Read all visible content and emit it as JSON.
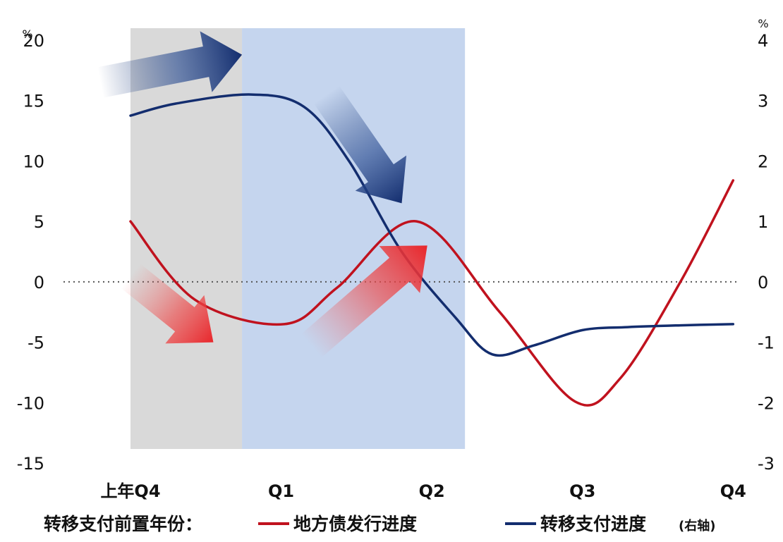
{
  "chart_data": {
    "type": "line",
    "left_axis": {
      "unit": "%",
      "ylim": [
        -15,
        20
      ],
      "ticks": [
        20,
        15,
        10,
        5,
        0,
        -5,
        -10,
        -15
      ],
      "tick_labels": [
        "20",
        "15",
        "10",
        "5",
        "0",
        "-5",
        "-10",
        "-15"
      ]
    },
    "right_axis": {
      "unit": "%",
      "ylim": [
        -3,
        4
      ],
      "ticks": [
        4,
        3,
        2,
        1,
        0,
        -1,
        -2,
        -3
      ],
      "tick_labels": [
        "4",
        "3",
        "2",
        "1",
        "0",
        "-1",
        "-2",
        "-3"
      ]
    },
    "categories": [
      "上年Q4",
      "Q1",
      "Q2",
      "Q3",
      "Q4"
    ],
    "x_range": [
      0,
      4.05
    ],
    "zero_line": "dotted",
    "grid": false,
    "shaded_regions": [
      {
        "x": [
          0,
          0.74
        ],
        "color": "#d9d9d9"
      },
      {
        "x": [
          0.74,
          2.22
        ],
        "color": "#c5d5ee"
      }
    ],
    "series": [
      {
        "name": "地方债发行进度",
        "axis": "left",
        "color": "#c0121e",
        "x": [
          0,
          0.43,
          1.02,
          1.37,
          1.9,
          2.45,
          2.95,
          3.25,
          3.65,
          4.0
        ],
        "values": [
          5,
          -1.5,
          -3.5,
          -0.5,
          5,
          -2.5,
          -9.9,
          -8.0,
          0,
          8.4
        ]
      },
      {
        "name": "转移支付进度",
        "axis": "right",
        "color": "#132d6e",
        "x": [
          0,
          0.3,
          0.8,
          1.15,
          1.45,
          1.8,
          2.16,
          2.4,
          2.68,
          3.0,
          3.3,
          3.65,
          4.0
        ],
        "values": [
          2.75,
          2.95,
          3.1,
          2.9,
          2.0,
          0.5,
          -0.6,
          -1.2,
          -1.05,
          -0.8,
          -0.75,
          -0.72,
          -0.7
        ]
      }
    ],
    "annotations": [
      {
        "type": "arrow",
        "color": "#1c3a7a",
        "from": [
          -0.2,
          16.5
        ],
        "to": [
          0.74,
          18.8
        ]
      },
      {
        "type": "arrow",
        "color": "#1c3a7a",
        "from": [
          1.3,
          15.5
        ],
        "to": [
          1.8,
          6.5
        ]
      },
      {
        "type": "arrow",
        "color": "#e8262b",
        "from": [
          0.0,
          0.5
        ],
        "to": [
          0.55,
          -5.0
        ]
      },
      {
        "type": "arrow",
        "color": "#e8262b",
        "from": [
          1.2,
          -5.3
        ],
        "to": [
          1.97,
          3.0
        ]
      }
    ]
  },
  "legend": {
    "prefix": "转移支付前置年份：",
    "items": [
      {
        "label": "地方债发行进度",
        "color": "#c0121e"
      },
      {
        "label": "转移支付进度",
        "color": "#132d6e",
        "suffix": "(右轴)"
      }
    ]
  }
}
